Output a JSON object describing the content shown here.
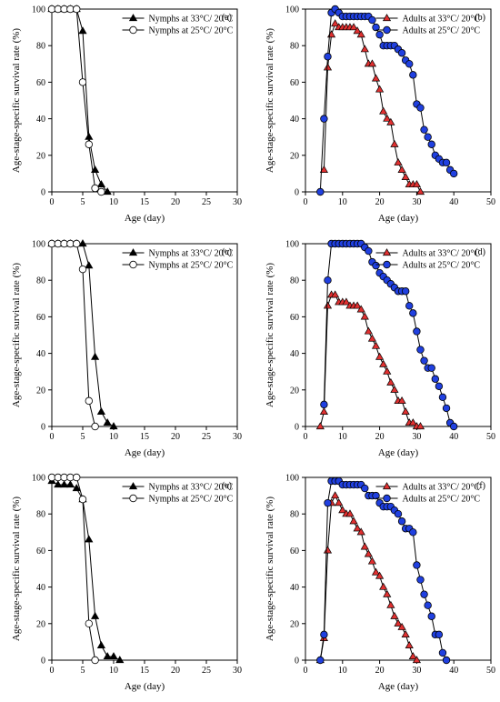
{
  "chart_data": [
    {
      "type": "line",
      "panel_label": "(a)",
      "xlabel": "Age (day)",
      "ylabel": "Age-stage-specific survival rate (%)",
      "xlim": [
        0,
        30
      ],
      "ylim": [
        0,
        100
      ],
      "xticks": [
        0,
        5,
        10,
        15,
        20,
        25,
        30
      ],
      "yticks": [
        0,
        20,
        40,
        60,
        80,
        100
      ],
      "legend_position": "top-right",
      "series": [
        {
          "name": "Nymphs at 33°C/ 20°C",
          "marker": "triangle",
          "color": "#000000",
          "fill": "#000000",
          "x": [
            0,
            1,
            2,
            3,
            4,
            5,
            6,
            7,
            8,
            9
          ],
          "y": [
            100,
            100,
            100,
            100,
            100,
            88,
            30,
            12,
            4,
            0
          ]
        },
        {
          "name": "Nymphs at 25°C/ 20°C",
          "marker": "circle",
          "color": "#000000",
          "fill": "#ffffff",
          "x": [
            0,
            1,
            2,
            3,
            4,
            5,
            6,
            7,
            8
          ],
          "y": [
            100,
            100,
            100,
            100,
            100,
            60,
            26,
            2,
            0
          ]
        }
      ]
    },
    {
      "type": "line",
      "panel_label": "(b)",
      "xlabel": "Age (day)",
      "ylabel": "Age-stage-specific survival rate (%)",
      "xlim": [
        0,
        50
      ],
      "ylim": [
        0,
        100
      ],
      "xticks": [
        0,
        10,
        20,
        30,
        40,
        50
      ],
      "yticks": [
        0,
        20,
        40,
        60,
        80,
        100
      ],
      "legend_position": "top-right",
      "series": [
        {
          "name": "Adults at 33°C/ 20°C",
          "marker": "triangle",
          "color": "#000000",
          "fill": "#e03030",
          "x": [
            5,
            6,
            7,
            8,
            9,
            10,
            11,
            12,
            13,
            14,
            15,
            16,
            17,
            18,
            19,
            20,
            21,
            22,
            23,
            24,
            25,
            26,
            27,
            28,
            29,
            30,
            31
          ],
          "y": [
            12,
            68,
            86,
            92,
            90,
            90,
            90,
            90,
            90,
            88,
            86,
            78,
            70,
            70,
            62,
            56,
            44,
            40,
            38,
            26,
            16,
            12,
            8,
            4,
            4,
            4,
            0
          ]
        },
        {
          "name": "Adults at 25°C/ 20°C",
          "marker": "circle",
          "color": "#000000",
          "fill": "#2040e0",
          "x": [
            4,
            5,
            6,
            7,
            8,
            9,
            10,
            11,
            12,
            13,
            14,
            15,
            16,
            17,
            18,
            19,
            20,
            21,
            22,
            23,
            24,
            25,
            26,
            27,
            28,
            29,
            30,
            31,
            32,
            33,
            34,
            35,
            36,
            37,
            38,
            39,
            40
          ],
          "y": [
            0,
            40,
            74,
            98,
            100,
            98,
            96,
            96,
            96,
            96,
            96,
            96,
            96,
            96,
            94,
            90,
            86,
            80,
            80,
            80,
            80,
            78,
            76,
            72,
            70,
            64,
            48,
            46,
            34,
            30,
            26,
            20,
            18,
            16,
            16,
            12,
            10
          ]
        }
      ]
    },
    {
      "type": "line",
      "panel_label": "(c)",
      "xlabel": "Age (day)",
      "ylabel": "Age-stage-specific survival rate (%)",
      "xlim": [
        0,
        30
      ],
      "ylim": [
        0,
        100
      ],
      "xticks": [
        0,
        5,
        10,
        15,
        20,
        25,
        30
      ],
      "yticks": [
        0,
        20,
        40,
        60,
        80,
        100
      ],
      "legend_position": "top-right",
      "series": [
        {
          "name": "Nymphs at 33°C/ 20°C",
          "marker": "triangle",
          "color": "#000000",
          "fill": "#000000",
          "x": [
            0,
            1,
            2,
            3,
            4,
            5,
            6,
            7,
            8,
            9,
            10
          ],
          "y": [
            100,
            100,
            100,
            100,
            100,
            100,
            88,
            38,
            8,
            2,
            0
          ]
        },
        {
          "name": "Nymphs at 25°C/ 20°C",
          "marker": "circle",
          "color": "#000000",
          "fill": "#ffffff",
          "x": [
            0,
            1,
            2,
            3,
            4,
            5,
            6,
            7
          ],
          "y": [
            100,
            100,
            100,
            100,
            100,
            86,
            14,
            0
          ]
        }
      ]
    },
    {
      "type": "line",
      "panel_label": "(d)",
      "xlabel": "Age (day)",
      "ylabel": "Age-stage-specific survival rate (%)",
      "xlim": [
        0,
        50
      ],
      "ylim": [
        0,
        100
      ],
      "xticks": [
        0,
        10,
        20,
        30,
        40,
        50
      ],
      "yticks": [
        0,
        20,
        40,
        60,
        80,
        100
      ],
      "legend_position": "top-right",
      "series": [
        {
          "name": "Adults at 33°C/ 20°C",
          "marker": "triangle",
          "color": "#000000",
          "fill": "#e03030",
          "x": [
            4,
            5,
            6,
            7,
            8,
            9,
            10,
            11,
            12,
            13,
            14,
            15,
            16,
            17,
            18,
            19,
            20,
            21,
            22,
            23,
            24,
            25,
            26,
            27,
            28,
            29,
            30,
            31
          ],
          "y": [
            0,
            8,
            66,
            72,
            72,
            68,
            68,
            68,
            66,
            66,
            66,
            64,
            60,
            52,
            48,
            44,
            38,
            34,
            30,
            24,
            20,
            14,
            14,
            8,
            2,
            2,
            0,
            0
          ]
        },
        {
          "name": "Adults at 25°C/ 20°C",
          "marker": "circle",
          "color": "#000000",
          "fill": "#2040e0",
          "x": [
            5,
            6,
            7,
            8,
            9,
            10,
            11,
            12,
            13,
            14,
            15,
            16,
            17,
            18,
            19,
            20,
            21,
            22,
            23,
            24,
            25,
            26,
            27,
            28,
            29,
            30,
            31,
            32,
            33,
            34,
            35,
            36,
            37,
            38,
            39,
            40
          ],
          "y": [
            12,
            80,
            100,
            100,
            100,
            100,
            100,
            100,
            100,
            100,
            100,
            98,
            96,
            90,
            88,
            84,
            82,
            80,
            78,
            76,
            74,
            74,
            74,
            66,
            62,
            52,
            42,
            36,
            32,
            32,
            26,
            22,
            16,
            10,
            2,
            0
          ]
        }
      ]
    },
    {
      "type": "line",
      "panel_label": "(e)",
      "xlabel": "Age (day)",
      "ylabel": "Age-stage-specific survival rate (%)",
      "xlim": [
        0,
        30
      ],
      "ylim": [
        0,
        100
      ],
      "xticks": [
        0,
        5,
        10,
        15,
        20,
        25,
        30
      ],
      "yticks": [
        0,
        20,
        40,
        60,
        80,
        100
      ],
      "legend_position": "top-right",
      "series": [
        {
          "name": "Nymphs at 33°C/ 20°C",
          "marker": "triangle",
          "color": "#000000",
          "fill": "#000000",
          "x": [
            0,
            1,
            2,
            3,
            4,
            5,
            6,
            7,
            8,
            9,
            10,
            11
          ],
          "y": [
            98,
            96,
            96,
            96,
            94,
            88,
            66,
            24,
            8,
            2,
            2,
            0
          ]
        },
        {
          "name": "Nymphs at 25°C/ 20°C",
          "marker": "circle",
          "color": "#000000",
          "fill": "#ffffff",
          "x": [
            0,
            1,
            2,
            3,
            4,
            5,
            6,
            7
          ],
          "y": [
            100,
            100,
            100,
            100,
            100,
            88,
            20,
            0
          ]
        }
      ]
    },
    {
      "type": "line",
      "panel_label": "(f)",
      "xlabel": "Age (day)",
      "ylabel": "Age-stage-specific survival rate (%)",
      "xlim": [
        0,
        50
      ],
      "ylim": [
        0,
        100
      ],
      "xticks": [
        0,
        10,
        20,
        30,
        40,
        50
      ],
      "yticks": [
        0,
        20,
        40,
        60,
        80,
        100
      ],
      "legend_position": "top-right",
      "series": [
        {
          "name": "Adults at 33°C/ 20°C",
          "marker": "triangle",
          "color": "#000000",
          "fill": "#e03030",
          "x": [
            4,
            5,
            6,
            7,
            8,
            9,
            10,
            11,
            12,
            13,
            14,
            15,
            16,
            17,
            18,
            19,
            20,
            21,
            22,
            23,
            24,
            25,
            26,
            27,
            28,
            29,
            30
          ],
          "y": [
            0,
            12,
            60,
            86,
            90,
            86,
            82,
            80,
            80,
            76,
            72,
            70,
            62,
            58,
            54,
            48,
            46,
            40,
            36,
            30,
            24,
            20,
            18,
            14,
            8,
            2,
            0
          ]
        },
        {
          "name": "Adults at 25°C/ 20°C",
          "marker": "circle",
          "color": "#000000",
          "fill": "#2040e0",
          "x": [
            4,
            5,
            6,
            7,
            8,
            9,
            10,
            11,
            12,
            13,
            14,
            15,
            16,
            17,
            18,
            19,
            20,
            21,
            22,
            23,
            24,
            25,
            26,
            27,
            28,
            29,
            30,
            31,
            32,
            33,
            34,
            35,
            36,
            37,
            38
          ],
          "y": [
            0,
            14,
            86,
            98,
            98,
            98,
            96,
            96,
            96,
            96,
            96,
            96,
            94,
            90,
            90,
            90,
            86,
            84,
            84,
            84,
            82,
            80,
            76,
            72,
            72,
            70,
            52,
            44,
            36,
            30,
            24,
            14,
            14,
            4,
            0
          ]
        }
      ]
    }
  ]
}
